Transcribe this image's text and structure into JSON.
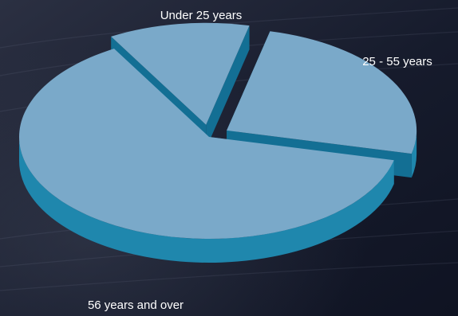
{
  "chart_data": {
    "type": "pie",
    "title": "",
    "categories": [
      "Under 25 years",
      "25 - 55 years",
      "56 years and over"
    ],
    "values": [
      12,
      25,
      63
    ],
    "exploded": [
      true,
      true,
      false
    ],
    "colors": {
      "top": "#7aa9c9",
      "side": "#1f87ad",
      "side_dark": "#136f94",
      "label": "#ffffff",
      "background": "#1a2033"
    },
    "legend": "none (labels placed beside slices)"
  }
}
